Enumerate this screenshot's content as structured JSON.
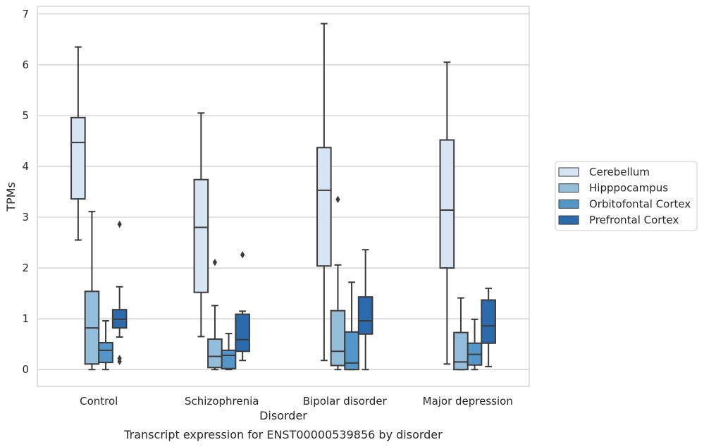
{
  "chart_data": {
    "type": "box",
    "caption": "Transcript expression for ENST00000539856 by disorder",
    "xlabel": "Disorder",
    "ylabel": "TPMs",
    "ylim": [
      -0.33,
      7.15
    ],
    "yticks": [
      "0",
      "1",
      "2",
      "3",
      "4",
      "5",
      "6",
      "7"
    ],
    "grid": "horizontal",
    "legend_position": "right",
    "categories": [
      "Control",
      "Schizophrenia",
      "Bipolar disorder",
      "Major depression"
    ],
    "series": [
      {
        "name": "Cerebellum",
        "color": "#d6e4f3",
        "boxes": [
          {
            "whislo": 2.55,
            "q1": 3.36,
            "med": 4.47,
            "q3": 4.96,
            "whishi": 6.35,
            "fliers": []
          },
          {
            "whislo": 0.65,
            "q1": 1.52,
            "med": 2.8,
            "q3": 3.74,
            "whishi": 5.05,
            "fliers": []
          },
          {
            "whislo": 0.18,
            "q1": 2.04,
            "med": 3.53,
            "q3": 4.37,
            "whishi": 6.81,
            "fliers": []
          },
          {
            "whislo": 0.11,
            "q1": 2.0,
            "med": 3.14,
            "q3": 4.52,
            "whishi": 6.05,
            "fliers": []
          }
        ]
      },
      {
        "name": "Hipppocampus",
        "color": "#94bdd9",
        "boxes": [
          {
            "whislo": 0.0,
            "q1": 0.11,
            "med": 0.82,
            "q3": 1.54,
            "whishi": 3.11,
            "fliers": []
          },
          {
            "whislo": 0.0,
            "q1": 0.04,
            "med": 0.26,
            "q3": 0.6,
            "whishi": 1.26,
            "fliers": [
              2.11
            ]
          },
          {
            "whislo": 0.0,
            "q1": 0.08,
            "med": 0.36,
            "q3": 1.16,
            "whishi": 2.06,
            "fliers": [
              3.35
            ]
          },
          {
            "whislo": 0.0,
            "q1": 0.0,
            "med": 0.15,
            "q3": 0.73,
            "whishi": 1.41,
            "fliers": []
          }
        ]
      },
      {
        "name": "Orbitofontal Cortex",
        "color": "#5596c8",
        "boxes": [
          {
            "whislo": 0.0,
            "q1": 0.14,
            "med": 0.38,
            "q3": 0.53,
            "whishi": 0.96,
            "fliers": []
          },
          {
            "whislo": 0.0,
            "q1": 0.02,
            "med": 0.28,
            "q3": 0.38,
            "whishi": 0.71,
            "fliers": []
          },
          {
            "whislo": 0.0,
            "q1": 0.0,
            "med": 0.13,
            "q3": 0.74,
            "whishi": 1.72,
            "fliers": []
          },
          {
            "whislo": 0.0,
            "q1": 0.09,
            "med": 0.3,
            "q3": 0.52,
            "whishi": 0.99,
            "fliers": []
          }
        ]
      },
      {
        "name": "Prefrontal Cortex",
        "color": "#2a6aad",
        "boxes": [
          {
            "whislo": 0.64,
            "q1": 0.82,
            "med": 0.99,
            "q3": 1.18,
            "whishi": 1.63,
            "fliers": [
              2.86,
              0.22,
              0.16
            ]
          },
          {
            "whislo": 0.18,
            "q1": 0.36,
            "med": 0.59,
            "q3": 1.09,
            "whishi": 1.15,
            "fliers": [
              2.26
            ]
          },
          {
            "whislo": 0.0,
            "q1": 0.7,
            "med": 0.96,
            "q3": 1.43,
            "whishi": 2.36,
            "fliers": []
          },
          {
            "whislo": 0.06,
            "q1": 0.52,
            "med": 0.86,
            "q3": 1.37,
            "whishi": 1.6,
            "fliers": []
          }
        ]
      }
    ]
  }
}
